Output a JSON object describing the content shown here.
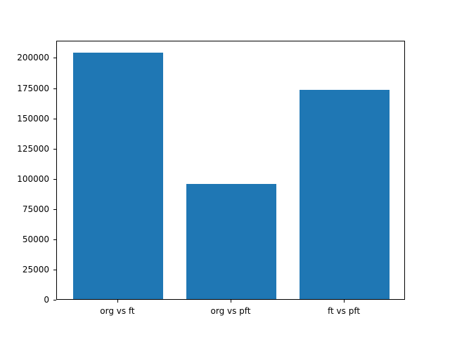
{
  "chart_data": {
    "type": "bar",
    "categories": [
      "org vs ft",
      "org vs pft",
      "ft vs pft"
    ],
    "values": [
      204000,
      95000,
      173000
    ],
    "title": "",
    "xlabel": "",
    "ylabel": "",
    "ylim": [
      0,
      214200
    ],
    "xlim": [
      -0.54,
      2.54
    ],
    "yticks": [
      0,
      25000,
      50000,
      75000,
      100000,
      125000,
      150000,
      175000,
      200000
    ],
    "ytick_labels": [
      "0",
      "25000",
      "50000",
      "75000",
      "100000",
      "125000",
      "150000",
      "175000",
      "200000"
    ],
    "bar_width_units": 0.8,
    "bar_color": "#1f77b4",
    "grid": false,
    "legend_position": "none"
  }
}
